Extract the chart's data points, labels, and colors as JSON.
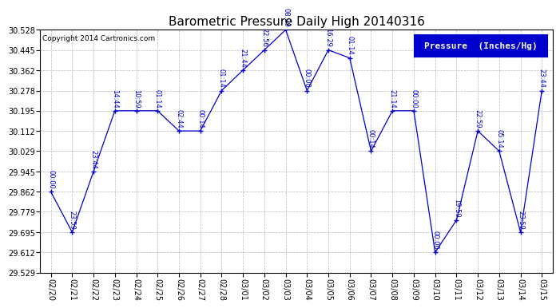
{
  "title": "Barometric Pressure Daily High 20140316",
  "copyright": "Copyright 2014 Cartronics.com",
  "legend_label": "Pressure  (Inches/Hg)",
  "ylim": [
    29.529,
    30.528
  ],
  "yticks": [
    29.529,
    29.612,
    29.695,
    29.779,
    29.862,
    29.945,
    30.029,
    30.112,
    30.195,
    30.278,
    30.362,
    30.445,
    30.528
  ],
  "background_color": "#ffffff",
  "line_color": "#0000cc",
  "grid_color": "#888888",
  "dates": [
    "02/20",
    "02/21",
    "02/22",
    "02/23",
    "02/24",
    "02/25",
    "02/26",
    "02/27",
    "02/28",
    "03/01",
    "03/02",
    "03/03",
    "03/04",
    "03/05",
    "03/06",
    "03/07",
    "03/08",
    "03/09",
    "03/10",
    "03/11",
    "03/12",
    "03/13",
    "03/14",
    "03/15"
  ],
  "values": [
    29.862,
    29.695,
    29.945,
    30.195,
    30.195,
    30.195,
    30.112,
    30.112,
    30.278,
    30.362,
    30.445,
    30.528,
    30.278,
    30.445,
    30.412,
    30.029,
    30.195,
    30.195,
    29.612,
    29.745,
    30.112,
    30.029,
    29.695,
    30.278
  ],
  "times": [
    "00:00",
    "23:59",
    "23:44",
    "14:44",
    "10:59",
    "01:14",
    "02:44",
    "00:14",
    "01:14",
    "21:44",
    "22:56",
    "08:29",
    "00:00",
    "16:29",
    "01:14",
    "00:14",
    "21:14",
    "00:00",
    "00:00",
    "19:59",
    "22:59",
    "05:14",
    "23:59",
    "23:44"
  ],
  "title_fontsize": 11,
  "legend_fontsize": 8,
  "tick_fontsize": 7,
  "annot_fontsize": 6,
  "copyright_fontsize": 6.5
}
